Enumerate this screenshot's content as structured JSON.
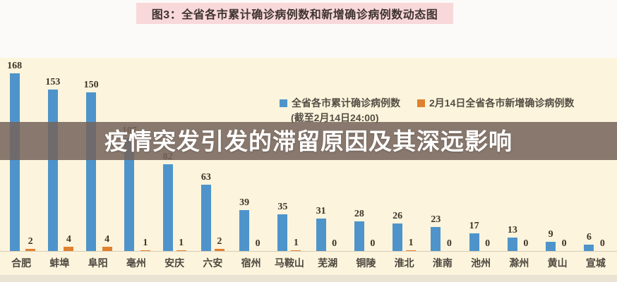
{
  "title": {
    "text": "图3：全省各市累计确诊病例数和新增确诊病例数动态图"
  },
  "overlay": {
    "text": "疫情突发引发的滞留原因及其深远影响"
  },
  "legend": {
    "series1_label": "全省各市累计确诊病例数",
    "series1_note": "(截至2月14日24:00)",
    "series2_label": "2月14日全省各市新增确诊病例数"
  },
  "colors": {
    "cumulative_blue": "#4e94cb",
    "new_orange": "#e0812f",
    "chart_background": "#fcf4dc",
    "title_background": "#f9d8da",
    "overlay_background": "rgba(116,99,91,0.86)"
  },
  "chart_data": {
    "type": "bar",
    "categories": [
      "合肥",
      "蚌埠",
      "阜阳",
      "亳州",
      "安庆",
      "六安",
      "宿州",
      "马鞍山",
      "芜湖",
      "铜陵",
      "淮北",
      "淮南",
      "池州",
      "滁州",
      "黄山",
      "宣城"
    ],
    "series": [
      {
        "name": "全省各市累计确诊病例数(截至2月14日24:00)",
        "values": [
          168,
          153,
          150,
          107,
          82,
          63,
          39,
          35,
          31,
          28,
          26,
          23,
          17,
          13,
          9,
          6
        ]
      },
      {
        "name": "2月14日全省各市新增确诊病例数",
        "values": [
          2,
          4,
          4,
          1,
          1,
          2,
          0,
          1,
          0,
          0,
          1,
          0,
          0,
          0,
          0,
          0
        ]
      }
    ],
    "title": "图3：全省各市累计确诊病例数和新增确诊病例数动态图",
    "xlabel": "",
    "ylabel": "",
    "ylim": [
      0,
      180
    ],
    "grid": false,
    "legend_position": "top-right",
    "value_labels": true
  }
}
